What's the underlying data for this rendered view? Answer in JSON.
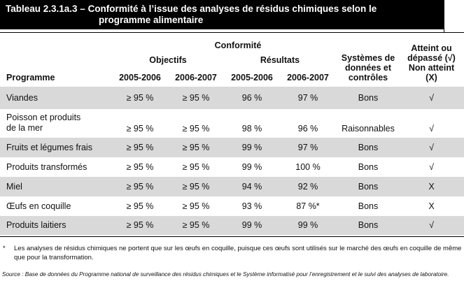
{
  "title": {
    "line1": "Tableau 2.3.1a.3 – Conformité à l’issue des analyses de résidus chimiques selon le",
    "line2": "programme alimentaire"
  },
  "headers": {
    "conformite": "Conformité",
    "objectifs": "Objectifs",
    "resultats": "Résultats",
    "programme": "Programme",
    "obj_2005": "2005-2006",
    "obj_2006": "2006-2007",
    "res_2005": "2005-2006",
    "res_2006": "2006-2007",
    "systemes": [
      "Systèmes de",
      "données et",
      "contrôles"
    ],
    "atteint": [
      "Atteint ou",
      "dépassé (√)",
      "Non atteint",
      "(X)"
    ]
  },
  "rows": [
    {
      "programme": [
        "Viandes"
      ],
      "obj_2005": "≥ 95 %",
      "obj_2006": "≥ 95 %",
      "res_2005": "96 %",
      "res_2006": "97 %",
      "systemes": "Bons",
      "atteint": "√"
    },
    {
      "programme": [
        "Poisson et produits",
        "de la mer"
      ],
      "obj_2005": "≥ 95 %",
      "obj_2006": "≥ 95 %",
      "res_2005": "98 %",
      "res_2006": "96 %",
      "systemes": "Raisonnables",
      "atteint": "√"
    },
    {
      "programme": [
        "Fruits et légumes frais"
      ],
      "obj_2005": "≥ 95 %",
      "obj_2006": "≥ 95 %",
      "res_2005": "99 %",
      "res_2006": "97 %",
      "systemes": "Bons",
      "atteint": "√"
    },
    {
      "programme": [
        "Produits transformés"
      ],
      "obj_2005": "≥ 95 %",
      "obj_2006": "≥ 95 %",
      "res_2005": "99 %",
      "res_2006": "100 %",
      "systemes": "Bons",
      "atteint": "√"
    },
    {
      "programme": [
        "Miel"
      ],
      "obj_2005": "≥ 95 %",
      "obj_2006": "≥ 95 %",
      "res_2005": "94 %",
      "res_2006": "92 %",
      "systemes": "Bons",
      "atteint": "X"
    },
    {
      "programme": [
        "Œufs en coquille"
      ],
      "obj_2005": "≥ 95 %",
      "obj_2006": "≥ 95 %",
      "res_2005": "93 %",
      "res_2006": "87 %*",
      "systemes": "Bons",
      "atteint": "X"
    },
    {
      "programme": [
        "Produits laitiers"
      ],
      "obj_2005": "≥ 95 %",
      "obj_2006": "≥ 95 %",
      "res_2005": "99 %",
      "res_2006": "99 %",
      "systemes": "Bons",
      "atteint": "√"
    }
  ],
  "footnote": {
    "marker": "*",
    "text": "Les analyses de résidus chimiques ne portent que sur les œufs en coquille, puisque ces œufs sont utilisés sur le marché des œufs en coquille de même que pour la transformation."
  },
  "source": "Source : Base de données du Programme national de surveillance des résidus chimiques et le Système informatisé pour l’enregistrement et le suivi des analyses de laboratoire.",
  "colors": {
    "shade": "#d9d9d9",
    "title_bg": "#000000"
  }
}
